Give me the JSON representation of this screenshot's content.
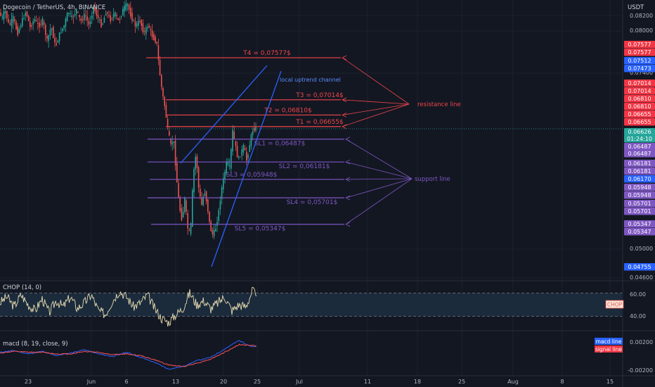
{
  "header": {
    "symbol_title": "Dogecoin / TetherUS, 4h, BINANCE",
    "currency": "USDT"
  },
  "colors": {
    "background": "#131722",
    "up": "#26a69a",
    "down": "#ef5350",
    "resistance": "#f0454a",
    "support": "#7e57c2",
    "channel": "#2962ff",
    "chop": "#e8dcb0",
    "macd": "#2962ff",
    "signal": "#ff5252"
  },
  "chart_data": [
    {
      "type": "candlestick",
      "title": "Dogecoin / TetherUS, 4h, BINANCE",
      "ylim": [
        0.046,
        0.0835
      ],
      "y_ticks": [
        "0.08200",
        "0.08000",
        "0.07400",
        "0.05000",
        "0.04600"
      ],
      "x_ticks": [
        "23",
        "Jun",
        "6",
        "13",
        "20",
        "25",
        "Jul",
        "11",
        "18",
        "25",
        "Aug",
        "8",
        "15"
      ],
      "current_price": "0.06626",
      "countdown": "01:24:10",
      "ohlc_path": [
        [
          0,
          0.0818
        ],
        [
          4,
          0.081
        ],
        [
          8,
          0.0822
        ],
        [
          14,
          0.08
        ],
        [
          20,
          0.0812
        ],
        [
          26,
          0.079
        ],
        [
          32,
          0.0806
        ],
        [
          38,
          0.082
        ],
        [
          44,
          0.0798
        ],
        [
          50,
          0.081
        ],
        [
          56,
          0.08
        ],
        [
          62,
          0.0808
        ],
        [
          68,
          0.078
        ],
        [
          74,
          0.08
        ],
        [
          80,
          0.0772
        ],
        [
          86,
          0.079
        ],
        [
          92,
          0.08
        ],
        [
          98,
          0.082
        ],
        [
          104,
          0.081
        ],
        [
          110,
          0.0822
        ],
        [
          116,
          0.0806
        ],
        [
          122,
          0.0816
        ],
        [
          128,
          0.08
        ],
        [
          134,
          0.0826
        ],
        [
          140,
          0.0812
        ],
        [
          146,
          0.08
        ],
        [
          152,
          0.082
        ],
        [
          158,
          0.0808
        ],
        [
          164,
          0.0818
        ],
        [
          170,
          0.0806
        ],
        [
          176,
          0.0822
        ],
        [
          182,
          0.083
        ],
        [
          188,
          0.0812
        ],
        [
          194,
          0.08
        ],
        [
          200,
          0.0808
        ],
        [
          206,
          0.079
        ],
        [
          212,
          0.0802
        ],
        [
          218,
          0.0786
        ],
        [
          224,
          0.0778
        ],
        [
          228,
          0.074
        ],
        [
          232,
          0.071
        ],
        [
          236,
          0.069
        ],
        [
          240,
          0.066
        ],
        [
          244,
          0.064
        ],
        [
          248,
          0.065
        ],
        [
          252,
          0.06
        ],
        [
          256,
          0.056
        ],
        [
          260,
          0.054
        ],
        [
          264,
          0.057
        ],
        [
          268,
          0.053
        ],
        [
          272,
          0.052
        ],
        [
          276,
          0.06
        ],
        [
          280,
          0.063
        ],
        [
          284,
          0.058
        ],
        [
          288,
          0.056
        ],
        [
          292,
          0.058
        ],
        [
          296,
          0.056
        ],
        [
          300,
          0.053
        ],
        [
          304,
          0.052
        ],
        [
          308,
          0.053
        ],
        [
          312,
          0.055
        ],
        [
          316,
          0.058
        ],
        [
          320,
          0.06
        ],
        [
          324,
          0.062
        ],
        [
          328,
          0.061
        ],
        [
          332,
          0.066
        ],
        [
          336,
          0.064
        ],
        [
          340,
          0.062
        ],
        [
          344,
          0.063
        ],
        [
          348,
          0.064
        ],
        [
          352,
          0.062
        ],
        [
          356,
          0.064
        ],
        [
          360,
          0.066
        ],
        [
          364,
          0.0663
        ]
      ],
      "resistance": [
        {
          "label": "T4 = 0,07577$",
          "price": 0.07577
        },
        {
          "label": "T3 = 0,07014$",
          "price": 0.07014
        },
        {
          "label": "T2 = 0,06810$",
          "price": 0.0681
        },
        {
          "label": "T1 = 0,06655$",
          "price": 0.06655
        }
      ],
      "support": [
        {
          "label": "SL1 = 0,06487$",
          "price": 0.06487
        },
        {
          "label": "SL2 = 0,06181$",
          "price": 0.06181
        },
        {
          "label": "SL3 = 0,05948$",
          "price": 0.05948
        },
        {
          "label": "SL4 = 0,05701$",
          "price": 0.05701
        },
        {
          "label": "SL5 = 0,05347$",
          "price": 0.05347
        }
      ],
      "annotations": {
        "channel_label": "local uptrend channel",
        "resistance_label": "resistance line",
        "support_label": "support line"
      },
      "price_tags": [
        {
          "text": "0.07577",
          "color": "#f23645"
        },
        {
          "text": "0.07577",
          "color": "#f23645"
        },
        {
          "text": "0.07512",
          "color": "#2962ff"
        },
        {
          "text": "0.07473",
          "color": "#2962ff"
        },
        {
          "text": "0.07014",
          "color": "#f23645"
        },
        {
          "text": "0.07014",
          "color": "#f23645"
        },
        {
          "text": "0.06810",
          "color": "#f23645"
        },
        {
          "text": "0.06810",
          "color": "#f23645"
        },
        {
          "text": "0.06655",
          "color": "#f23645"
        },
        {
          "text": "0.06655",
          "color": "#f23645"
        },
        {
          "text": "0.06626",
          "color": "#26a69a"
        },
        {
          "text": "01:24:10",
          "color": "#26a69a"
        },
        {
          "text": "0.06487",
          "color": "#7e57c2"
        },
        {
          "text": "0.06487",
          "color": "#7e57c2"
        },
        {
          "text": "0.06181",
          "color": "#7e57c2"
        },
        {
          "text": "0.06181",
          "color": "#7e57c2"
        },
        {
          "text": "0.06170",
          "color": "#2962ff"
        },
        {
          "text": "0.05948",
          "color": "#7e57c2"
        },
        {
          "text": "0.05948",
          "color": "#7e57c2"
        },
        {
          "text": "0.05701",
          "color": "#7e57c2"
        },
        {
          "text": "0.05701",
          "color": "#7e57c2"
        },
        {
          "text": "0.05347",
          "color": "#7e57c2"
        },
        {
          "text": "0.05347",
          "color": "#7e57c2"
        },
        {
          "text": "0.04755",
          "color": "#2962ff"
        }
      ]
    },
    {
      "type": "line",
      "title": "CHOP (14, 0)",
      "y_ticks": [
        "60.00",
        "40.00"
      ],
      "ylim": [
        25,
        70
      ],
      "band": [
        38.2,
        61.8
      ],
      "tag": "CHOP",
      "x": [
        0,
        10,
        20,
        30,
        40,
        50,
        60,
        70,
        80,
        90,
        100,
        110,
        120,
        130,
        140,
        150,
        160,
        170,
        180,
        190,
        200,
        210,
        220,
        230,
        240,
        250,
        260,
        270,
        280,
        290,
        300,
        310,
        320,
        330,
        340,
        350,
        360,
        365
      ],
      "values": [
        52,
        58,
        48,
        60,
        50,
        44,
        56,
        42,
        54,
        48,
        58,
        46,
        52,
        60,
        44,
        40,
        54,
        64,
        58,
        48,
        52,
        60,
        46,
        36,
        32,
        40,
        46,
        62,
        50,
        54,
        46,
        52,
        58,
        44,
        50,
        48,
        66,
        54
      ]
    },
    {
      "type": "line",
      "title": "macd (8, 19, close, 9)",
      "y_ticks": [
        "0.00200",
        "-0.00200"
      ],
      "ylim": [
        -0.0025,
        0.0025
      ],
      "x": [
        0,
        20,
        40,
        60,
        80,
        100,
        120,
        140,
        160,
        180,
        200,
        220,
        240,
        260,
        280,
        300,
        320,
        340,
        360,
        365
      ],
      "series": [
        {
          "name": "macd line",
          "values": [
            0.0002,
            0.0004,
            0.0,
            0.0003,
            -0.0002,
            0.0001,
            0.0005,
            0.0,
            -0.0003,
            0.0002,
            -0.0004,
            -0.001,
            -0.0018,
            -0.0015,
            -0.0008,
            -0.0004,
            0.0006,
            0.0016,
            0.0008,
            0.001
          ]
        },
        {
          "name": "signal line",
          "values": [
            0.0001,
            0.0003,
            0.0002,
            0.0002,
            0.0,
            0.0,
            0.0003,
            0.0002,
            -0.0001,
            0.0,
            -0.0002,
            -0.0007,
            -0.0013,
            -0.0015,
            -0.0011,
            -0.0006,
            0.0002,
            0.0011,
            0.001,
            0.0009
          ]
        }
      ]
    }
  ]
}
